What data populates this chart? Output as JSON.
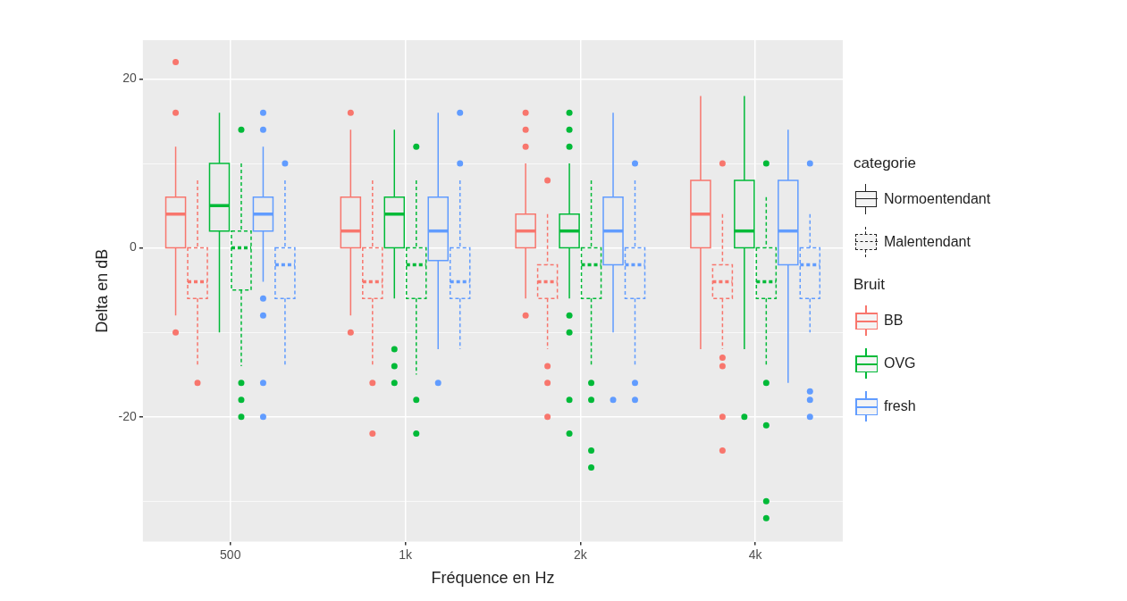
{
  "chart_data": {
    "type": "box",
    "xlabel": "Fréquence en Hz",
    "ylabel": "Delta en dB",
    "legend_title": "Bruit",
    "legend": "right",
    "grid": true,
    "annotations": [
      "categorie",
      "Normoentendant",
      "Malentendant"
    ],
    "categories": [
      "500",
      "1k",
      "2k",
      "4k"
    ],
    "ylim": [
      -34.8,
      24.6
    ],
    "yticks": [
      {
        "value": -30,
        "label": null
      },
      -20,
      {
        "value": -10,
        "label": null
      },
      0,
      {
        "value": 10,
        "label": null
      },
      20
    ],
    "series": [
      {
        "name": "BB",
        "color": "#f8766d",
        "line_style": "solid",
        "boxes": [
          {
            "low": -8,
            "q1": 0,
            "median": 4,
            "q3": 6,
            "high": 12,
            "outliers": [
              22,
              16,
              -10
            ]
          },
          {
            "low": -8,
            "q1": 0,
            "median": 2,
            "q3": 6,
            "high": 14,
            "outliers": [
              16,
              -10
            ]
          },
          {
            "low": -6,
            "q1": 0,
            "median": 2,
            "q3": 4,
            "high": 10,
            "outliers": [
              16,
              14,
              12,
              -8
            ]
          },
          {
            "low": -12,
            "q1": 0,
            "median": 4,
            "q3": 8,
            "high": 18
          }
        ]
      },
      {
        "color": "#f8766d",
        "line_style": "dashed",
        "boxes": [
          {
            "low": -14,
            "q1": -6,
            "median": -4,
            "q3": 0,
            "high": 8,
            "outliers": [
              -16
            ]
          },
          {
            "low": -14,
            "q1": -6,
            "median": -4,
            "q3": 0,
            "high": 8,
            "outliers": [
              -16,
              -22
            ]
          },
          {
            "low": -12,
            "q1": -6,
            "median": -4,
            "q3": -2,
            "high": 4,
            "outliers": [
              8,
              -14,
              -16,
              -20
            ]
          },
          {
            "low": -12,
            "q1": -6,
            "median": -4,
            "q3": -2,
            "high": 4,
            "outliers": [
              10,
              -13,
              -14,
              -20,
              -24
            ]
          }
        ]
      },
      {
        "name": "OVG",
        "color": "#00ba38",
        "line_style": "solid",
        "boxes": [
          {
            "low": -10,
            "q1": 2,
            "median": 5,
            "q3": 10,
            "high": 16
          },
          {
            "low": -6,
            "q1": 0,
            "median": 4,
            "q3": 6,
            "high": 14,
            "outliers": [
              -12,
              -14,
              -16
            ]
          },
          {
            "low": -6,
            "q1": 0,
            "median": 2,
            "q3": 4,
            "high": 10,
            "outliers": [
              16,
              14,
              12,
              -8,
              -10,
              -18,
              -22
            ]
          },
          {
            "low": -12,
            "q1": 0,
            "median": 2,
            "q3": 8,
            "high": 18,
            "outliers": [
              -20
            ]
          }
        ]
      },
      {
        "color": "#00ba38",
        "line_style": "dashed",
        "boxes": [
          {
            "low": -14,
            "q1": -5,
            "median": 0,
            "q3": 2,
            "high": 10,
            "outliers": [
              14,
              -16,
              -18,
              -20
            ]
          },
          {
            "low": -15,
            "q1": -6,
            "median": -2,
            "q3": 0,
            "high": 8,
            "outliers": [
              12,
              -18,
              -22
            ]
          },
          {
            "low": -14,
            "q1": -6,
            "median": -2,
            "q3": 0,
            "high": 8,
            "outliers": [
              -16,
              -18,
              -24,
              -26
            ]
          },
          {
            "low": -14,
            "q1": -6,
            "median": -4,
            "q3": 0,
            "high": 6,
            "outliers": [
              10,
              -16,
              -21,
              -30,
              -32
            ]
          }
        ]
      },
      {
        "name": "fresh",
        "color": "#619cff",
        "line_style": "solid",
        "boxes": [
          {
            "low": -4,
            "q1": 2,
            "median": 4,
            "q3": 6,
            "high": 12,
            "outliers": [
              16,
              14,
              -6,
              -8,
              -16,
              -20
            ]
          },
          {
            "low": -12,
            "q1": -1.5,
            "median": 2,
            "q3": 6,
            "high": 16,
            "outliers": [
              -16
            ]
          },
          {
            "low": -10,
            "q1": -2,
            "median": 2,
            "q3": 6,
            "high": 16,
            "outliers": [
              -18
            ]
          },
          {
            "low": -16,
            "q1": -2,
            "median": 2,
            "q3": 8,
            "high": 14
          }
        ]
      },
      {
        "color": "#619cff",
        "line_style": "dashed",
        "boxes": [
          {
            "low": -14,
            "q1": -6,
            "median": -2,
            "q3": 0,
            "high": 8,
            "outliers": [
              10
            ]
          },
          {
            "low": -12,
            "q1": -6,
            "median": -4,
            "q3": 0,
            "high": 8,
            "outliers": [
              16,
              10
            ]
          },
          {
            "low": -14,
            "q1": -6,
            "median": -2,
            "q3": 0,
            "high": 8,
            "outliers": [
              10,
              -16,
              -18
            ]
          },
          {
            "low": -10,
            "q1": -6,
            "median": -2,
            "q3": 0,
            "high": 4,
            "outliers": [
              10,
              -17,
              -18,
              -20
            ]
          }
        ]
      }
    ]
  }
}
